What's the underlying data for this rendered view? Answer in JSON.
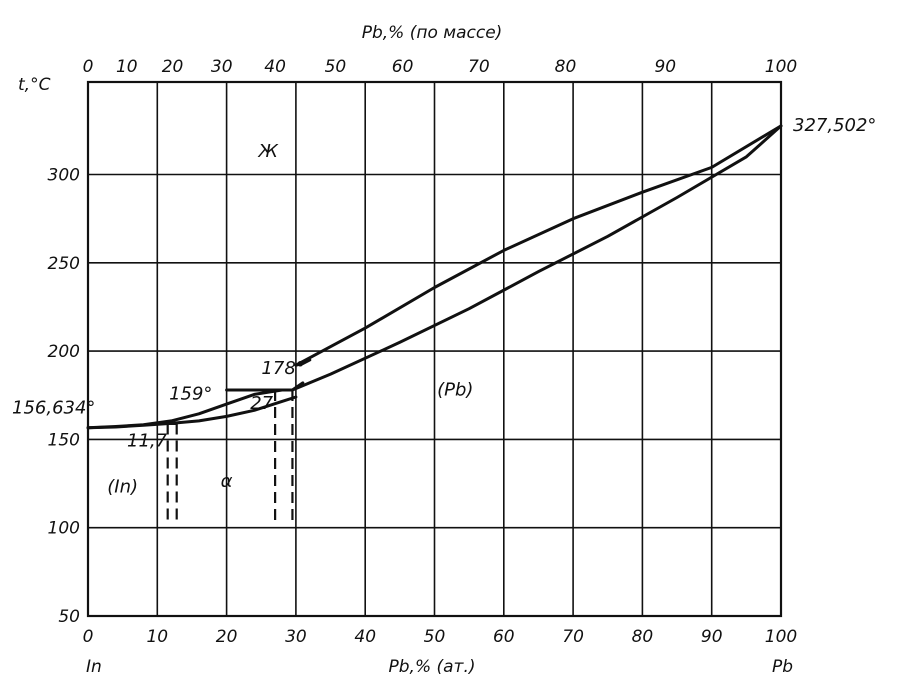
{
  "chart_data": {
    "type": "line",
    "title": "",
    "x_bottom": {
      "label": "Pb,% (ат.)",
      "range": [
        0,
        100
      ],
      "ticks": [
        "0",
        "10",
        "20",
        "30",
        "40",
        "50",
        "60",
        "70",
        "80",
        "90",
        "100"
      ],
      "end_labels": {
        "left": "In",
        "right": "Pb"
      }
    },
    "x_top": {
      "label": "Pb,% (по массе)",
      "ticks": [
        {
          "label": "0",
          "at": 0
        },
        {
          "label": "10",
          "at": 5.6
        },
        {
          "label": "20",
          "at": 12.2
        },
        {
          "label": "30",
          "at": 19.3
        },
        {
          "label": "40",
          "at": 27.0
        },
        {
          "label": "50",
          "at": 35.7
        },
        {
          "label": "60",
          "at": 45.4
        },
        {
          "label": "70",
          "at": 56.4
        },
        {
          "label": "80",
          "at": 68.9
        },
        {
          "label": "90",
          "at": 83.3
        },
        {
          "label": "100",
          "at": 100
        }
      ]
    },
    "y": {
      "label": "t,°C",
      "range": [
        50,
        330
      ],
      "ticks": [
        "50",
        "100",
        "150",
        "200",
        "250",
        "300"
      ]
    },
    "grid": true,
    "series": [
      {
        "key": "liquidus_left",
        "x": [
          0,
          4,
          8,
          12,
          16,
          20,
          24,
          28
        ],
        "y": [
          156.634,
          157.3,
          158.3,
          160.5,
          164.5,
          170,
          175.5,
          178
        ]
      },
      {
        "key": "liquidus_right",
        "x": [
          30,
          40,
          50,
          60,
          70,
          80,
          90,
          100
        ],
        "y": [
          192,
          213,
          236,
          257,
          275,
          290,
          304,
          327.502
        ]
      },
      {
        "key": "solidus_left",
        "x": [
          0,
          4,
          8,
          11.7
        ],
        "y": [
          156.634,
          157,
          158,
          159
        ]
      },
      {
        "key": "solidus_right",
        "x": [
          29.5,
          35,
          45,
          55,
          65,
          75,
          85,
          95,
          100
        ],
        "y": [
          178,
          187,
          205,
          224,
          245,
          265,
          287,
          310,
          327.502
        ]
      },
      {
        "key": "boundary_left",
        "x": [
          11.7,
          16,
          20,
          24,
          28,
          30
        ],
        "y": [
          159,
          160.5,
          163,
          166.5,
          171.5,
          174
        ]
      },
      {
        "key": "eutectic_159",
        "x": [
          11.7,
          12.7
        ],
        "y": [
          159,
          159
        ]
      },
      {
        "key": "eutectic_178",
        "x": [
          20,
          29.5
        ],
        "y": [
          178,
          178
        ]
      },
      {
        "key": "link_178",
        "x": [
          29.5,
          31
        ],
        "y": [
          178,
          182
        ]
      },
      {
        "key": "link_top",
        "x": [
          30,
          31,
          32
        ],
        "y": [
          192,
          193,
          195
        ]
      }
    ],
    "dashed_lines": [
      {
        "x": 11.5,
        "y": [
          159,
          104
        ]
      },
      {
        "x": 12.8,
        "y": [
          159,
          104
        ]
      },
      {
        "x": 27,
        "y": [
          178,
          104
        ]
      },
      {
        "x": 29.5,
        "y": [
          178,
          104
        ]
      }
    ],
    "points": [
      {
        "label": "156,634°",
        "x": 0,
        "y": 156.634
      },
      {
        "label": "327,502°",
        "x": 100,
        "y": 327.502
      },
      {
        "label": "159°",
        "x": 11.7,
        "y": 159
      },
      {
        "label": "178°",
        "x": 29.5,
        "y": 178
      },
      {
        "label": "11,7",
        "x": 11.7,
        "y": 150
      },
      {
        "label": "27",
        "x": 27,
        "y": 170
      }
    ],
    "regions": [
      {
        "label": "Ж",
        "x": 26,
        "y": 310
      },
      {
        "label": "(In)",
        "x": 5,
        "y": 120
      },
      {
        "label": "α",
        "x": 20,
        "y": 123
      },
      {
        "label": "(Pb)",
        "x": 53,
        "y": 175
      }
    ]
  }
}
